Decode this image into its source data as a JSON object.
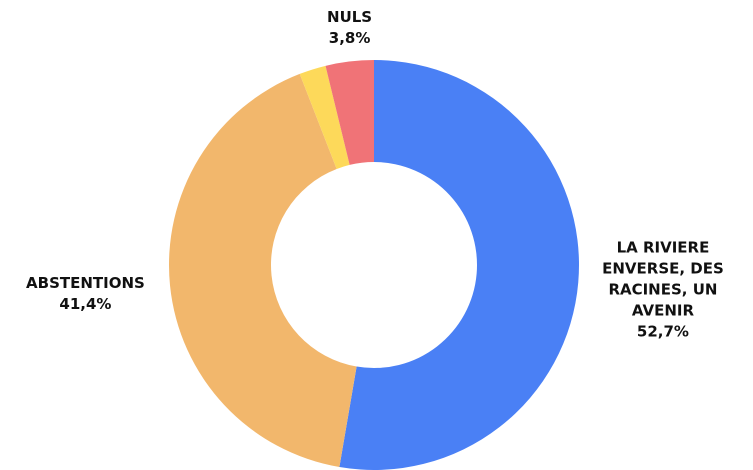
{
  "chart_data": {
    "type": "donut",
    "categories": [
      "LA RIVIERE ENVERSE, DES RACINES, UN AVENIR",
      "ABSTENTIONS",
      null,
      "NULS"
    ],
    "values": [
      52.7,
      41.4,
      2.1,
      3.8
    ],
    "value_labels": [
      "52,7%",
      "41,4%",
      null,
      "3,8%"
    ],
    "colors": [
      "#4a80f5",
      "#f2b76c",
      "#fdd95a",
      "#f07377"
    ]
  }
}
